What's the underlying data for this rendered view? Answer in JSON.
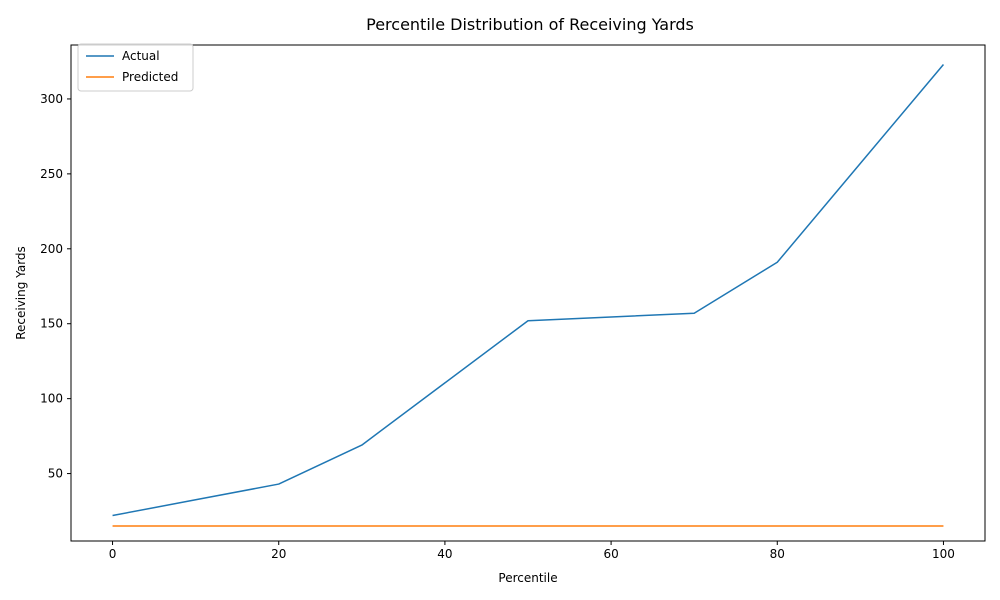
{
  "chart_data": {
    "type": "line",
    "title": "Percentile Distribution of Receiving Yards",
    "xlabel": "Percentile",
    "ylabel": "Receiving Yards",
    "x": [
      0,
      10,
      20,
      30,
      40,
      50,
      60,
      70,
      80,
      90,
      100
    ],
    "xlim": [
      -5,
      105
    ],
    "ylim": [
      5,
      336
    ],
    "xticks": [
      0,
      20,
      40,
      60,
      80,
      100
    ],
    "yticks": [
      50,
      100,
      150,
      200,
      250,
      300
    ],
    "grid": false,
    "legend_position": "upper-left",
    "series": [
      {
        "name": "Actual",
        "color": "#1f77b4",
        "values": [
          22,
          32.5,
          43,
          69,
          110.5,
          152,
          154.5,
          157,
          191,
          257,
          323
        ]
      },
      {
        "name": "Predicted",
        "color": "#ff7f0e",
        "values": [
          15,
          15,
          15,
          15,
          15,
          15,
          15,
          15,
          15,
          15,
          15
        ]
      }
    ]
  }
}
